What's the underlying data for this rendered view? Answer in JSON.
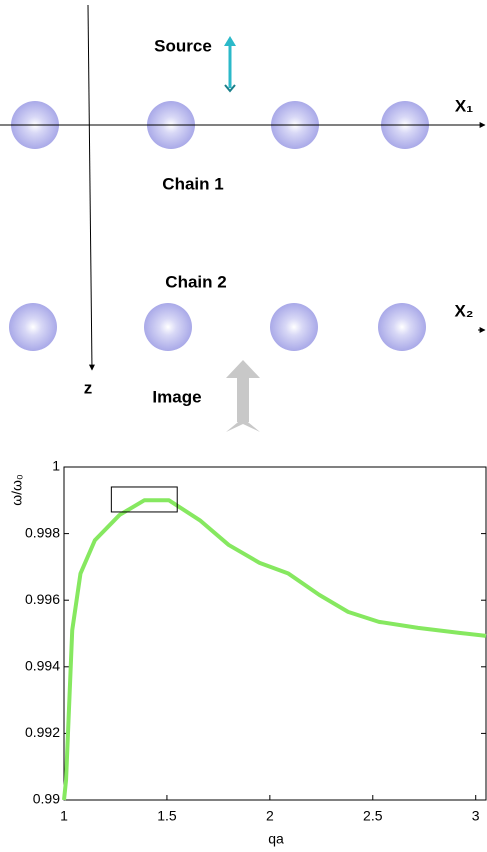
{
  "diagram": {
    "source": "Source",
    "chain1": "Chain 1",
    "chain2": "Chain 2",
    "image": "Image",
    "z": "z",
    "x1": "X₁",
    "x2": "X₂"
  },
  "chart_data": {
    "type": "line",
    "xlabel": "qa",
    "ylabel": "ω/ω₀",
    "xlim": [
      1,
      3.05
    ],
    "ylim": [
      0.99,
      1
    ],
    "xticks": [
      1,
      1.5,
      2,
      2.5,
      3
    ],
    "yticks": [
      0.99,
      0.992,
      0.994,
      0.996,
      0.998,
      1
    ],
    "series": [
      {
        "color": "#86e860",
        "x": [
          1.0,
          1.01,
          1.04,
          1.08,
          1.15,
          1.27,
          1.39,
          1.51,
          1.66,
          1.8,
          1.95,
          2.09,
          2.24,
          2.38,
          2.53,
          2.72,
          2.92,
          3.05
        ],
        "values": [
          0.99,
          0.9906,
          0.9951,
          0.9968,
          0.9978,
          0.99856,
          0.999,
          0.999,
          0.9984,
          0.99766,
          0.99712,
          0.9968,
          0.99616,
          0.99565,
          0.99535,
          0.99517,
          0.99502,
          0.99493
        ]
      }
    ],
    "highlight": {
      "x": [
        1.23,
        1.55
      ],
      "y": [
        0.99865,
        0.9994
      ]
    }
  }
}
